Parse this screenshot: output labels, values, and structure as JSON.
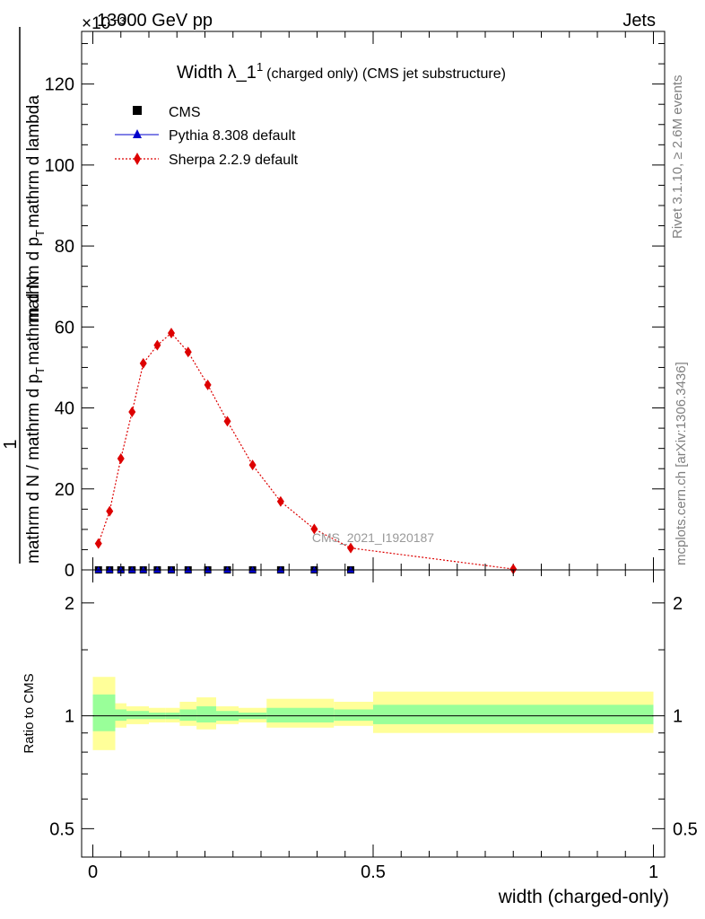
{
  "header": {
    "left": "13000 GeV pp",
    "right": "Jets",
    "exponent": "×10⁻³"
  },
  "side_labels": {
    "rivet": "Rivet 3.1.10, ≥ 2.6M events",
    "mcplots": "mcplots.cern.ch [arXiv:1306.3436]"
  },
  "watermark": "CMS_2021_I1920187",
  "chart_data": [
    {
      "type": "line",
      "title_main": "Width λ_1",
      "title_sup": "1",
      "title_rest": "(charged only) (CMS jet substructure)",
      "ylabel_numerator": "1",
      "ylabel_line1": "mathrm d N / mathrm d p",
      "ylabel_sub1": "T",
      "ylabel_line2": "mathrm d N",
      "ylabel_line3": "mathrm d p",
      "ylabel_sub3": "T",
      "ylabel_line4": "mathrm d lambda",
      "ylim": [
        0,
        133
      ],
      "xlim": [
        -0.02,
        1.02
      ],
      "yticks": [
        "0",
        "20",
        "40",
        "60",
        "80",
        "100",
        "120"
      ],
      "ytick_values": [
        0,
        20,
        40,
        60,
        80,
        100,
        120
      ],
      "legend": {
        "cms": "CMS",
        "pythia": "Pythia 8.308 default",
        "sherpa": "Sherpa 2.2.9 default"
      },
      "colors": {
        "cms": "#000000",
        "pythia": "#0000cc",
        "sherpa": "#dd0000"
      },
      "series": [
        {
          "name": "CMS",
          "x": [
            0.01,
            0.03,
            0.05,
            0.07,
            0.09,
            0.115,
            0.14,
            0.17,
            0.205,
            0.24,
            0.285,
            0.335,
            0.395,
            0.46
          ],
          "y": [
            0,
            0,
            0,
            0,
            0,
            0,
            0,
            0,
            0,
            0,
            0,
            0,
            0,
            0
          ]
        },
        {
          "name": "Pythia 8.308 default",
          "x": [
            0.01,
            0.03,
            0.05,
            0.07,
            0.09,
            0.115,
            0.14,
            0.17,
            0.205,
            0.24,
            0.285,
            0.335,
            0.395,
            0.46
          ],
          "y": [
            0,
            0,
            0,
            0,
            0,
            0,
            0,
            0,
            0,
            0,
            0,
            0,
            0,
            0
          ]
        },
        {
          "name": "Sherpa 2.2.9 default",
          "x": [
            0.01,
            0.03,
            0.05,
            0.07,
            0.09,
            0.115,
            0.14,
            0.17,
            0.205,
            0.24,
            0.285,
            0.335,
            0.395,
            0.46,
            0.75
          ],
          "y": [
            6.5,
            14.5,
            27.5,
            39,
            51,
            55.5,
            58.5,
            53.8,
            45.7,
            36.7,
            25.9,
            16.9,
            10.1,
            5.4,
            0.2
          ]
        }
      ]
    },
    {
      "type": "area",
      "ylabel": "Ratio to CMS",
      "xlabel": "width (charged-only)",
      "scale": "log",
      "ylim": [
        0.42,
        2.45
      ],
      "xlim": [
        -0.02,
        1.02
      ],
      "yticks": [
        "0.5",
        "1",
        "2"
      ],
      "ytick_values": [
        0.5,
        1,
        2
      ],
      "xticks": [
        "0",
        "0.5",
        "1"
      ],
      "xtick_values": [
        0,
        0.5,
        1
      ],
      "colors": {
        "outer": "#ffff99",
        "inner": "#99ff99",
        "line": "#000000"
      },
      "bins": [
        {
          "lo": 0.0,
          "hi": 0.04,
          "outer": [
            0.81,
            1.27
          ],
          "inner": [
            0.91,
            1.14
          ]
        },
        {
          "lo": 0.04,
          "hi": 0.06,
          "outer": [
            0.93,
            1.08
          ],
          "inner": [
            0.97,
            1.04
          ]
        },
        {
          "lo": 0.06,
          "hi": 0.08,
          "outer": [
            0.95,
            1.06
          ],
          "inner": [
            0.98,
            1.03
          ]
        },
        {
          "lo": 0.08,
          "hi": 0.1,
          "outer": [
            0.95,
            1.06
          ],
          "inner": [
            0.98,
            1.03
          ]
        },
        {
          "lo": 0.1,
          "hi": 0.13,
          "outer": [
            0.96,
            1.05
          ],
          "inner": [
            0.98,
            1.02
          ]
        },
        {
          "lo": 0.13,
          "hi": 0.155,
          "outer": [
            0.96,
            1.05
          ],
          "inner": [
            0.98,
            1.02
          ]
        },
        {
          "lo": 0.155,
          "hi": 0.185,
          "outer": [
            0.94,
            1.09
          ],
          "inner": [
            0.97,
            1.04
          ]
        },
        {
          "lo": 0.185,
          "hi": 0.22,
          "outer": [
            0.92,
            1.12
          ],
          "inner": [
            0.96,
            1.06
          ]
        },
        {
          "lo": 0.22,
          "hi": 0.26,
          "outer": [
            0.95,
            1.06
          ],
          "inner": [
            0.97,
            1.03
          ]
        },
        {
          "lo": 0.26,
          "hi": 0.31,
          "outer": [
            0.96,
            1.05
          ],
          "inner": [
            0.98,
            1.02
          ]
        },
        {
          "lo": 0.31,
          "hi": 0.36,
          "outer": [
            0.93,
            1.11
          ],
          "inner": [
            0.96,
            1.05
          ]
        },
        {
          "lo": 0.36,
          "hi": 0.43,
          "outer": [
            0.93,
            1.11
          ],
          "inner": [
            0.96,
            1.05
          ]
        },
        {
          "lo": 0.43,
          "hi": 0.5,
          "outer": [
            0.94,
            1.09
          ],
          "inner": [
            0.97,
            1.04
          ]
        },
        {
          "lo": 0.5,
          "hi": 1.0,
          "outer": [
            0.9,
            1.16
          ],
          "inner": [
            0.95,
            1.07
          ]
        }
      ]
    }
  ]
}
